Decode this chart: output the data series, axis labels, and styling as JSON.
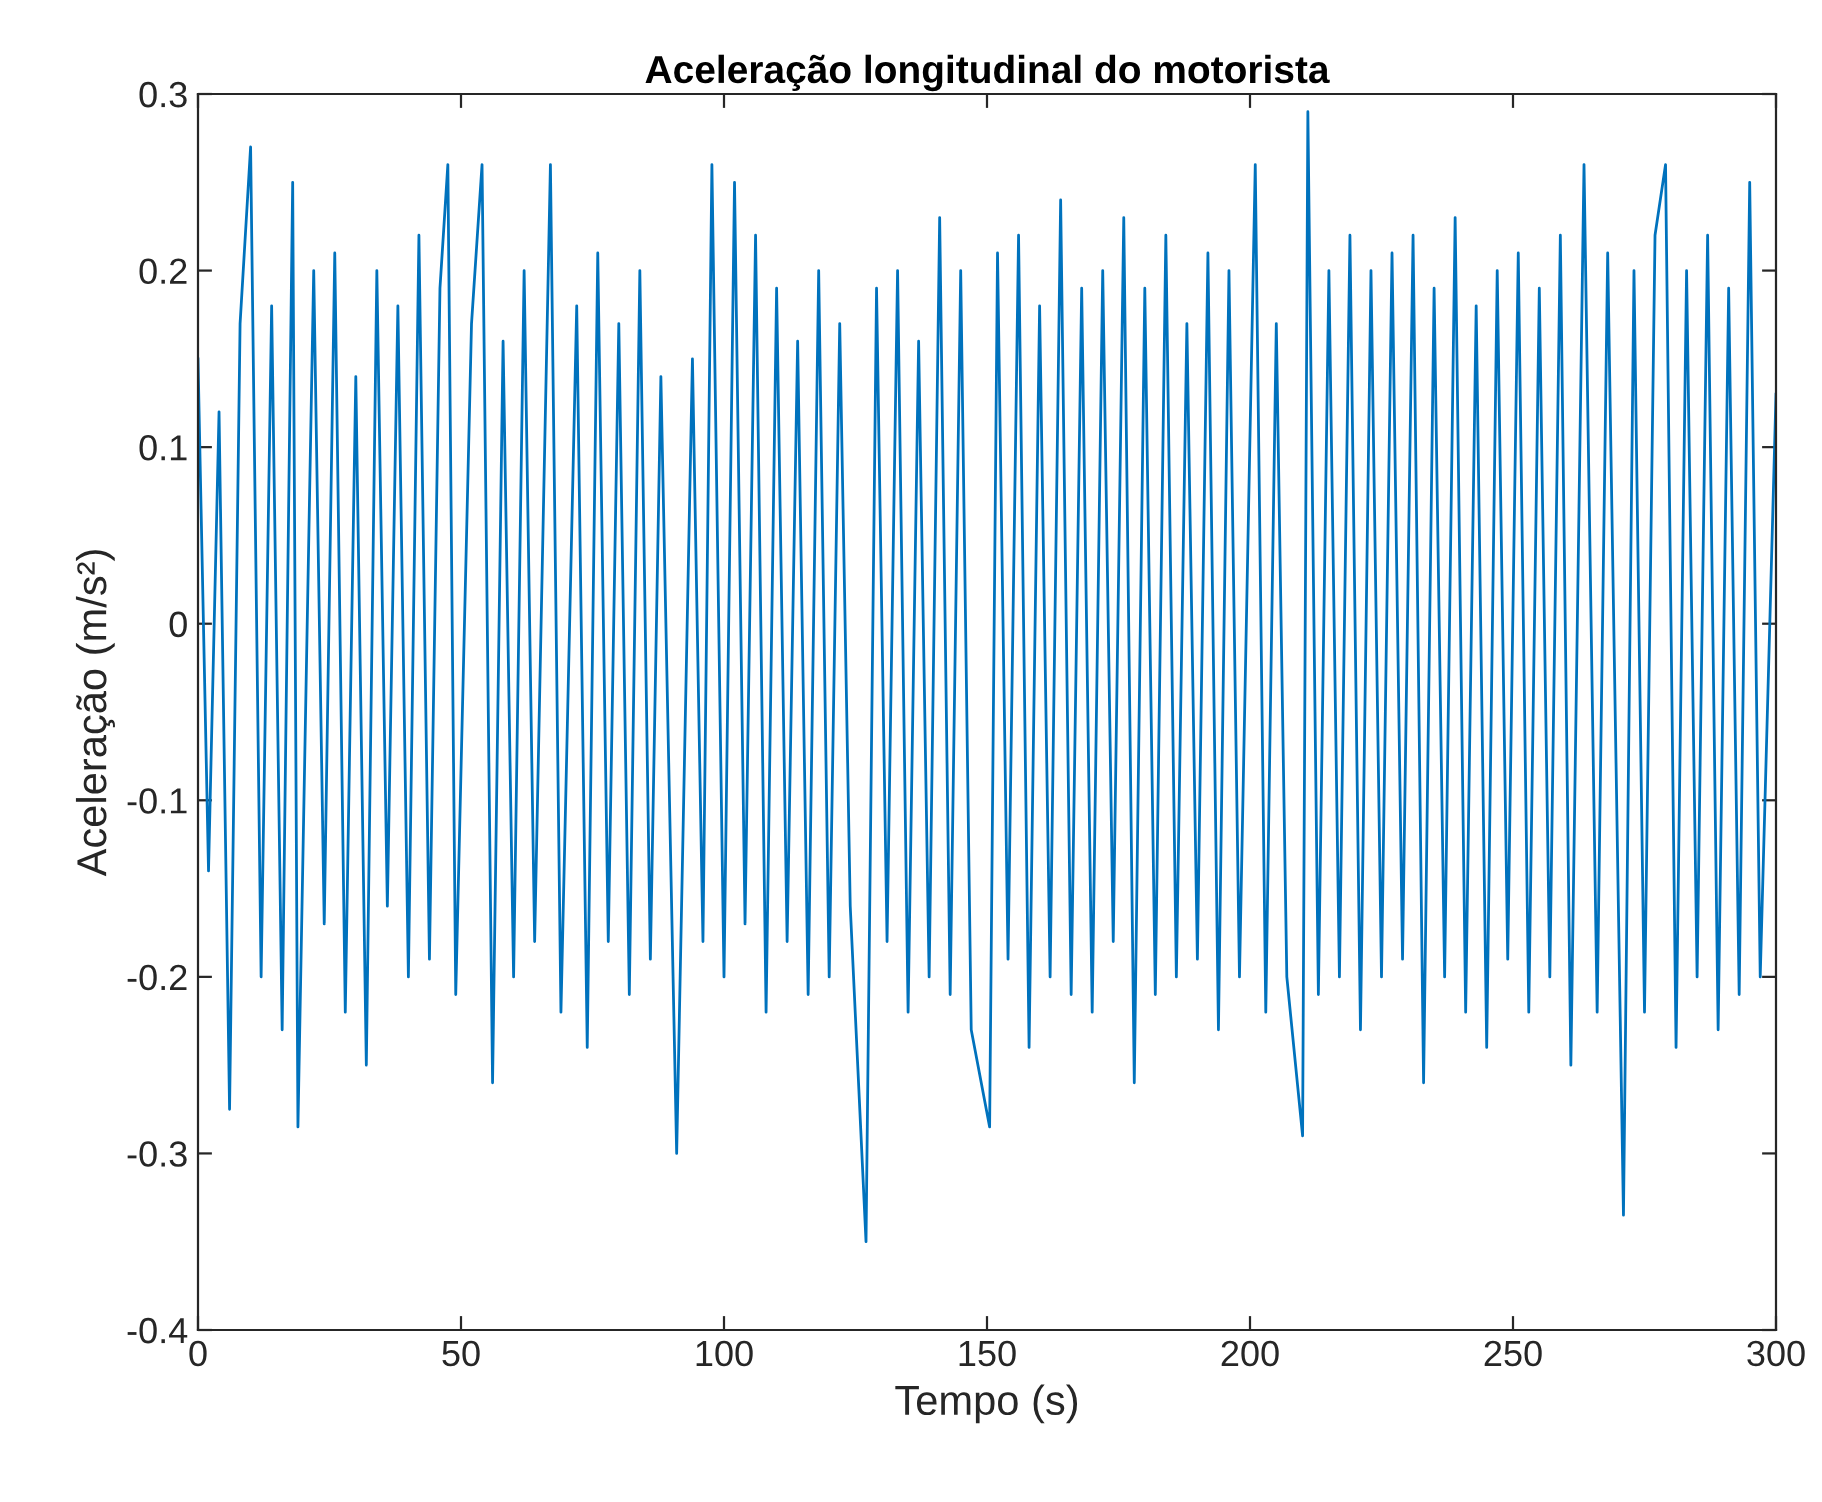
{
  "chart_data": {
    "type": "line",
    "title": "Aceleração longitudinal do motorista",
    "xlabel": "Tempo (s)",
    "ylabel": "Aceleração (m/s²)",
    "xlim": [
      0,
      300
    ],
    "ylim": [
      -0.4,
      0.3
    ],
    "xticks": [
      0,
      50,
      100,
      150,
      200,
      250,
      300
    ],
    "yticks": [
      -0.4,
      -0.3,
      -0.2,
      -0.1,
      0,
      0.1,
      0.2,
      0.3
    ],
    "grid": false,
    "marker": "none",
    "line_style": "solid",
    "series": [
      {
        "color": "#0072bd",
        "x": [
          0,
          2,
          4,
          6,
          8,
          10,
          12,
          14,
          16,
          18,
          19,
          22,
          24,
          26,
          28,
          30,
          32,
          34,
          36,
          38,
          40,
          42,
          44,
          46,
          47.5,
          49,
          52,
          54,
          56,
          58,
          60,
          62,
          64,
          67,
          69,
          72,
          74,
          76,
          78,
          80,
          82,
          84,
          86,
          88,
          91,
          94,
          96,
          97.7,
          100,
          102,
          104,
          106,
          108,
          110,
          112,
          114,
          116,
          118,
          120,
          122,
          124,
          127,
          129,
          131,
          133,
          135,
          137,
          139,
          141,
          143,
          145,
          147,
          150.5,
          152,
          154,
          156,
          158,
          160,
          162,
          164,
          166,
          168,
          170,
          172,
          174,
          176,
          178,
          180,
          182,
          184,
          186,
          188,
          190,
          192,
          194,
          196,
          198,
          201,
          203,
          205,
          207,
          210,
          211,
          213,
          215,
          217,
          219,
          221,
          223,
          225,
          227,
          229,
          231,
          233,
          235,
          237,
          239,
          241,
          243,
          245,
          247,
          249,
          251,
          253,
          255,
          257,
          259,
          261,
          263.5,
          266,
          268,
          271,
          273,
          275,
          277,
          279,
          281,
          283,
          285,
          287,
          289,
          291,
          293,
          295,
          297,
          300
        ],
        "values": [
          0.15,
          -0.14,
          0.12,
          -0.275,
          0.17,
          0.27,
          -0.2,
          0.18,
          -0.23,
          0.25,
          -0.285,
          0.2,
          -0.17,
          0.21,
          -0.22,
          0.14,
          -0.25,
          0.2,
          -0.16,
          0.18,
          -0.2,
          0.22,
          -0.19,
          0.19,
          0.26,
          -0.21,
          0.17,
          0.26,
          -0.26,
          0.16,
          -0.2,
          0.2,
          -0.18,
          0.26,
          -0.22,
          0.18,
          -0.24,
          0.21,
          -0.18,
          0.17,
          -0.21,
          0.2,
          -0.19,
          0.14,
          -0.3,
          0.15,
          -0.18,
          0.26,
          -0.2,
          0.25,
          -0.17,
          0.22,
          -0.22,
          0.19,
          -0.18,
          0.16,
          -0.21,
          0.2,
          -0.2,
          0.17,
          -0.16,
          -0.35,
          0.19,
          -0.18,
          0.2,
          -0.22,
          0.16,
          -0.2,
          0.23,
          -0.21,
          0.2,
          -0.23,
          -0.285,
          0.21,
          -0.19,
          0.22,
          -0.24,
          0.18,
          -0.2,
          0.24,
          -0.21,
          0.19,
          -0.22,
          0.2,
          -0.18,
          0.23,
          -0.26,
          0.19,
          -0.21,
          0.22,
          -0.2,
          0.17,
          -0.19,
          0.21,
          -0.23,
          0.2,
          -0.2,
          0.26,
          -0.22,
          0.17,
          -0.2,
          -0.29,
          0.29,
          -0.21,
          0.2,
          -0.2,
          0.22,
          -0.23,
          0.2,
          -0.2,
          0.21,
          -0.19,
          0.22,
          -0.26,
          0.19,
          -0.2,
          0.23,
          -0.22,
          0.18,
          -0.24,
          0.2,
          -0.19,
          0.21,
          -0.22,
          0.19,
          -0.2,
          0.22,
          -0.25,
          0.26,
          -0.22,
          0.21,
          -0.335,
          0.2,
          -0.22,
          0.22,
          0.26,
          -0.24,
          0.2,
          -0.2,
          0.22,
          -0.23,
          0.19,
          -0.21,
          0.25,
          -0.2,
          0.13
        ]
      }
    ]
  }
}
